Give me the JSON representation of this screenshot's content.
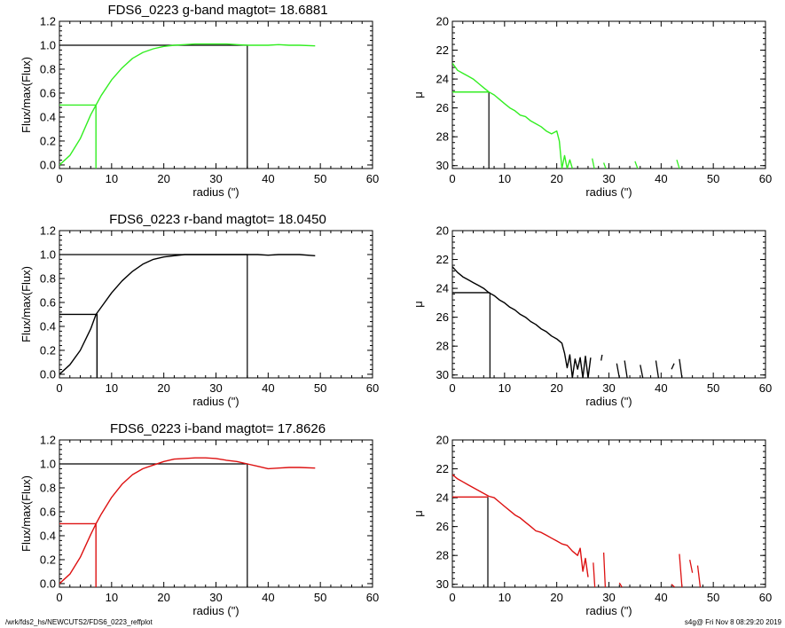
{
  "footer": {
    "left": "/wrk/fds2_hs/NEWCUTS2/FDS6_0223_reffplot",
    "right": "s4g@  Fri Nov  8 08:29:20 2019"
  },
  "colors": {
    "g": "#33ee22",
    "r": "#000000",
    "i": "#dd1111",
    "axis": "#000000"
  },
  "chart_data": [
    {
      "type": "line",
      "panel": "g-growth",
      "color": "g",
      "title": "FDS6_0223 g-band  magtot=      18.6881",
      "xlabel": "radius (\")",
      "ylabel": "Flux/max(Flux)",
      "xlim": [
        0,
        60
      ],
      "ylim": [
        -0.03,
        1.2
      ],
      "xticks": [
        "0",
        "10",
        "20",
        "30",
        "40",
        "50",
        "60"
      ],
      "xtick_values": [
        0,
        10,
        20,
        30,
        40,
        50,
        60
      ],
      "yticks": [
        "0.0",
        "0.2",
        "0.4",
        "0.6",
        "0.8",
        "1.0",
        "1.2"
      ],
      "ytick_values": [
        0,
        0.2,
        0.4,
        0.6,
        0.8,
        1.0,
        1.2
      ],
      "series": [
        {
          "x": [
            0,
            2,
            4,
            6,
            7,
            8,
            10,
            12,
            14,
            16,
            18,
            20,
            22,
            24,
            26,
            28,
            30,
            32,
            34,
            36,
            38,
            40,
            42,
            44,
            46,
            49
          ],
          "values": [
            0,
            0.08,
            0.22,
            0.42,
            0.5,
            0.58,
            0.71,
            0.81,
            0.89,
            0.94,
            0.97,
            0.99,
            1.0,
            1.005,
            1.01,
            1.01,
            1.01,
            1.01,
            1.005,
            1.0,
            1.0,
            1.0,
            1.005,
            1.0,
            1.0,
            0.995
          ]
        }
      ],
      "guide": {
        "r_half": 7,
        "half_level": 0.5,
        "r_total": 36,
        "total_level": 1.0
      }
    },
    {
      "type": "line",
      "panel": "g-mu",
      "color": "g",
      "title": "",
      "xlabel": "radius (\")",
      "ylabel": "μ",
      "xlim": [
        0,
        60
      ],
      "ylim": [
        30.2,
        20
      ],
      "reversed_y": true,
      "xticks": [
        "0",
        "10",
        "20",
        "30",
        "40",
        "50",
        "60"
      ],
      "xtick_values": [
        0,
        10,
        20,
        30,
        40,
        50,
        60
      ],
      "yticks": [
        "20",
        "22",
        "24",
        "26",
        "28",
        "30"
      ],
      "ytick_values": [
        20,
        22,
        24,
        26,
        28,
        30
      ],
      "series": [
        {
          "x": [
            0,
            1,
            2,
            3,
            4,
            5,
            6,
            7,
            8,
            9,
            10,
            11,
            12,
            13,
            14,
            15,
            16,
            17,
            18,
            19,
            20,
            20.5,
            21,
            21.5,
            22,
            22.5,
            23
          ],
          "values": [
            22.9,
            23.4,
            23.6,
            23.8,
            24.0,
            24.3,
            24.6,
            24.9,
            25.1,
            25.4,
            25.7,
            26.0,
            26.2,
            26.5,
            26.6,
            26.9,
            27.1,
            27.3,
            27.6,
            27.8,
            27.6,
            28.3,
            30.2,
            29.3,
            30.2,
            29.6,
            30.2
          ]
        }
      ],
      "fragments": [
        [
          26.8,
          29.5,
          27.2,
          30.2
        ],
        [
          29.0,
          29.8,
          29.4,
          30.2
        ],
        [
          35.0,
          29.7,
          35.5,
          30.2
        ],
        [
          43.0,
          29.6,
          43.5,
          30.2
        ]
      ],
      "guide": {
        "r_half": 7,
        "mu_half": 24.9
      }
    },
    {
      "type": "line",
      "panel": "r-growth",
      "color": "r",
      "title": "FDS6_0223 r-band  magtot=      18.0450",
      "xlabel": "radius (\")",
      "ylabel": "Flux/max(Flux)",
      "xlim": [
        0,
        60
      ],
      "ylim": [
        -0.03,
        1.2
      ],
      "xticks": [
        "0",
        "10",
        "20",
        "30",
        "40",
        "50",
        "60"
      ],
      "xtick_values": [
        0,
        10,
        20,
        30,
        40,
        50,
        60
      ],
      "yticks": [
        "0.0",
        "0.2",
        "0.4",
        "0.6",
        "0.8",
        "1.0",
        "1.2"
      ],
      "ytick_values": [
        0,
        0.2,
        0.4,
        0.6,
        0.8,
        1.0,
        1.2
      ],
      "series": [
        {
          "x": [
            0,
            2,
            4,
            6,
            7,
            8,
            10,
            12,
            14,
            16,
            18,
            20,
            22,
            24,
            26,
            28,
            30,
            32,
            34,
            36,
            38,
            40,
            42,
            44,
            46,
            49
          ],
          "values": [
            0,
            0.08,
            0.2,
            0.38,
            0.5,
            0.56,
            0.68,
            0.78,
            0.86,
            0.92,
            0.96,
            0.98,
            0.99,
            1.0,
            1.0,
            1.0,
            1.0,
            1.0,
            1.0,
            1.0,
            1.0,
            0.995,
            1.0,
            1.0,
            1.0,
            0.99
          ]
        }
      ],
      "guide": {
        "r_half": 7.2,
        "half_level": 0.5,
        "r_total": 36,
        "total_level": 1.0
      }
    },
    {
      "type": "line",
      "panel": "r-mu",
      "color": "r",
      "title": "",
      "xlabel": "radius (\")",
      "ylabel": "μ",
      "xlim": [
        0,
        60
      ],
      "ylim": [
        30.2,
        20
      ],
      "reversed_y": true,
      "xticks": [
        "0",
        "10",
        "20",
        "30",
        "40",
        "50",
        "60"
      ],
      "xtick_values": [
        0,
        10,
        20,
        30,
        40,
        50,
        60
      ],
      "yticks": [
        "20",
        "22",
        "24",
        "26",
        "28",
        "30"
      ],
      "ytick_values": [
        20,
        22,
        24,
        26,
        28,
        30
      ],
      "series": [
        {
          "x": [
            0,
            1,
            2,
            3,
            4,
            5,
            6,
            7,
            8,
            9,
            10,
            11,
            12,
            13,
            14,
            15,
            16,
            17,
            18,
            19,
            20,
            21,
            21.5,
            22,
            22.5,
            23,
            23.5,
            24,
            24.5,
            25,
            25.5,
            26,
            26.5
          ],
          "values": [
            22.5,
            22.9,
            23.2,
            23.4,
            23.6,
            23.8,
            24.0,
            24.3,
            24.5,
            24.8,
            25.0,
            25.3,
            25.5,
            25.8,
            26.0,
            26.3,
            26.5,
            26.8,
            27.0,
            27.3,
            27.5,
            27.8,
            28.5,
            29.5,
            28.6,
            30.2,
            28.9,
            29.6,
            28.8,
            30.2,
            28.7,
            30.2,
            28.8
          ]
        }
      ],
      "fragments": [
        [
          28.5,
          29.0,
          28.7,
          28.6
        ],
        [
          31.5,
          29.2,
          32.0,
          30.2
        ],
        [
          33.0,
          29.0,
          33.5,
          30.2
        ],
        [
          36.0,
          29.3,
          36.5,
          30.2
        ],
        [
          39.0,
          29.0,
          39.5,
          30.2
        ],
        [
          42.0,
          29.6,
          42.5,
          29.2
        ],
        [
          43.5,
          28.9,
          44.0,
          30.2
        ]
      ],
      "guide": {
        "r_half": 7.2,
        "mu_half": 24.3
      }
    },
    {
      "type": "line",
      "panel": "i-growth",
      "color": "i",
      "title": "FDS6_0223 i-band  magtot=      17.8626",
      "xlabel": "radius (\")",
      "ylabel": "Flux/max(Flux)",
      "xlim": [
        0,
        60
      ],
      "ylim": [
        -0.03,
        1.2
      ],
      "xticks": [
        "0",
        "10",
        "20",
        "30",
        "40",
        "50",
        "60"
      ],
      "xtick_values": [
        0,
        10,
        20,
        30,
        40,
        50,
        60
      ],
      "yticks": [
        "0.0",
        "0.2",
        "0.4",
        "0.6",
        "0.8",
        "1.0",
        "1.2"
      ],
      "ytick_values": [
        0,
        0.2,
        0.4,
        0.6,
        0.8,
        1.0,
        1.2
      ],
      "series": [
        {
          "x": [
            0,
            2,
            4,
            6,
            7,
            8,
            10,
            12,
            14,
            16,
            18,
            20,
            22,
            24,
            26,
            28,
            30,
            32,
            34,
            36,
            38,
            40,
            42,
            44,
            46,
            49
          ],
          "values": [
            0,
            0.08,
            0.22,
            0.41,
            0.5,
            0.58,
            0.72,
            0.83,
            0.91,
            0.96,
            0.99,
            1.02,
            1.04,
            1.045,
            1.05,
            1.05,
            1.045,
            1.03,
            1.02,
            1.0,
            0.98,
            0.96,
            0.965,
            0.97,
            0.97,
            0.965
          ]
        }
      ],
      "guide": {
        "r_half": 7,
        "half_level": 0.5,
        "r_total": 36,
        "total_level": 1.0
      }
    },
    {
      "type": "line",
      "panel": "i-mu",
      "color": "i",
      "title": "",
      "xlabel": "radius (\")",
      "ylabel": "μ",
      "xlim": [
        0,
        60
      ],
      "ylim": [
        30.2,
        20
      ],
      "reversed_y": true,
      "xticks": [
        "0",
        "10",
        "20",
        "30",
        "40",
        "50",
        "60"
      ],
      "xtick_values": [
        0,
        10,
        20,
        30,
        40,
        50,
        60
      ],
      "yticks": [
        "20",
        "22",
        "24",
        "26",
        "28",
        "30"
      ],
      "ytick_values": [
        20,
        22,
        24,
        26,
        28,
        30
      ],
      "series": [
        {
          "x": [
            0,
            1,
            2,
            3,
            4,
            5,
            6,
            7,
            8,
            9,
            10,
            11,
            12,
            13,
            14,
            15,
            16,
            17,
            18,
            19,
            20,
            21,
            22,
            23,
            24,
            24.5,
            25,
            25.5,
            26
          ],
          "values": [
            22.4,
            22.7,
            22.9,
            23.1,
            23.3,
            23.5,
            23.7,
            23.9,
            24.0,
            24.3,
            24.6,
            24.9,
            25.2,
            25.4,
            25.7,
            26.0,
            26.3,
            26.4,
            26.6,
            26.8,
            27.0,
            27.2,
            27.3,
            27.7,
            28.0,
            27.5,
            29.1,
            28.2,
            29.5
          ]
        }
      ],
      "fragments": [
        [
          27.0,
          28.5,
          27.3,
          30.2
        ],
        [
          29.0,
          27.8,
          29.3,
          30.2
        ],
        [
          32.0,
          29.9,
          32.5,
          30.2
        ],
        [
          42.0,
          30.0,
          42.6,
          30.2
        ],
        [
          43.5,
          27.9,
          44.0,
          30.2
        ],
        [
          45.5,
          28.3,
          46.0,
          29.2
        ],
        [
          47.0,
          28.7,
          47.5,
          30.2
        ]
      ],
      "guide": {
        "r_half": 6.8,
        "mu_half": 23.95
      }
    }
  ]
}
